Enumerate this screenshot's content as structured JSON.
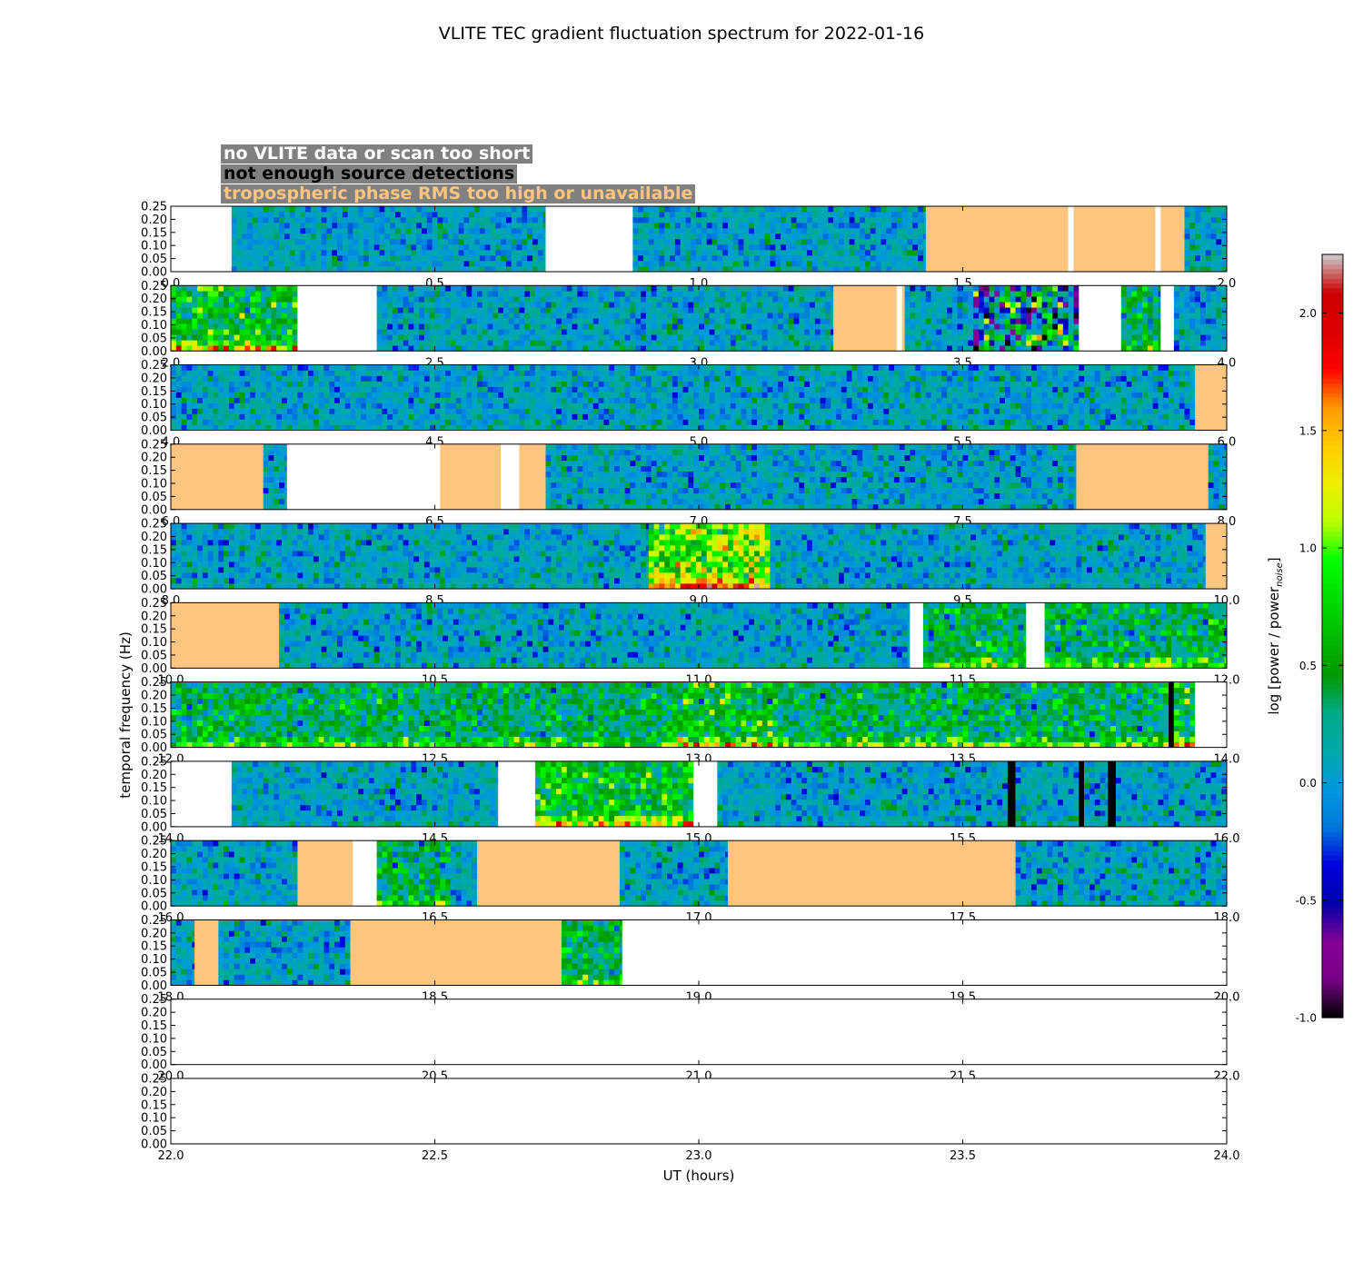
{
  "chart_data": {
    "type": "heatmap",
    "title": "VLITE TEC gradient fluctuation spectrum for 2022-01-16",
    "xlabel": "UT (hours)",
    "ylabel": "temporal frequency (Hz)",
    "colorbar_label_main": "log [power / power",
    "colorbar_label_sub": "noise",
    "colorbar_label_end": "]",
    "colorbar_range": [
      -1.0,
      2.25
    ],
    "colorbar_ticks": [
      "-1.0",
      "-0.5",
      "0.0",
      "0.5",
      "1.0",
      "1.5",
      "2.0"
    ],
    "colorbar_tick_values": [
      -1.0,
      -0.5,
      0.0,
      0.5,
      1.0,
      1.5,
      2.0
    ],
    "ylim": [
      0,
      0.25
    ],
    "ytick_labels": [
      "0.00",
      "0.05",
      "0.10",
      "0.15",
      "0.20",
      "0.25"
    ],
    "flag_legend": [
      {
        "label": "no VLITE data or scan too short",
        "color": "#ffffff"
      },
      {
        "label": "not enough source detections",
        "color": "#000000"
      },
      {
        "label": "tropospheric phase RMS too high or unavailable",
        "color": "#fec57f"
      }
    ],
    "flag_colors": {
      "nodata": "#ffffff",
      "nodet": "#000000",
      "tropo": "#fec57f"
    },
    "panels": [
      {
        "range": [
          0,
          2
        ],
        "xtick_labels": [
          "0.0",
          "0.5",
          "1.0",
          "1.5",
          "2.0"
        ],
        "segments": [
          [
            0,
            0.115,
            "nodata"
          ],
          [
            0.115,
            0.71,
            "data",
            0
          ],
          [
            0.71,
            0.875,
            "nodata"
          ],
          [
            0.875,
            1.43,
            "data",
            0
          ],
          [
            1.43,
            1.7,
            "tropo"
          ],
          [
            1.7,
            1.71,
            "nodata"
          ],
          [
            1.71,
            1.865,
            "tropo"
          ],
          [
            1.865,
            1.875,
            "nodata"
          ],
          [
            1.875,
            1.92,
            "tropo"
          ],
          [
            1.92,
            2.0,
            "data",
            0
          ]
        ]
      },
      {
        "range": [
          2,
          4
        ],
        "xtick_labels": [
          "2.0",
          "2.5",
          "3.0",
          "3.5",
          "4.0"
        ],
        "segments": [
          [
            2.0,
            2.24,
            "data",
            2
          ],
          [
            2.24,
            2.39,
            "nodata"
          ],
          [
            2.39,
            3.255,
            "data",
            0
          ],
          [
            3.255,
            3.375,
            "tropo"
          ],
          [
            3.375,
            3.385,
            "nodata"
          ],
          [
            3.385,
            3.39,
            "tropo"
          ],
          [
            3.39,
            3.52,
            "data",
            0
          ],
          [
            3.52,
            3.72,
            "data",
            3
          ],
          [
            3.72,
            3.8,
            "nodata"
          ],
          [
            3.8,
            3.875,
            "data",
            1
          ],
          [
            3.875,
            3.9,
            "nodata"
          ],
          [
            3.9,
            4.0,
            "data",
            0
          ]
        ]
      },
      {
        "range": [
          4,
          6
        ],
        "xtick_labels": [
          "4.0",
          "4.5",
          "5.0",
          "5.5",
          "6.0"
        ],
        "segments": [
          [
            4.0,
            5.94,
            "data",
            0
          ],
          [
            5.94,
            6.0,
            "tropo"
          ]
        ]
      },
      {
        "range": [
          6,
          8
        ],
        "xtick_labels": [
          "6.0",
          "6.5",
          "7.0",
          "7.5",
          "8.0"
        ],
        "segments": [
          [
            6.0,
            6.175,
            "tropo"
          ],
          [
            6.175,
            6.22,
            "data",
            0
          ],
          [
            6.22,
            6.51,
            "nodata"
          ],
          [
            6.51,
            6.625,
            "tropo"
          ],
          [
            6.625,
            6.66,
            "nodata"
          ],
          [
            6.66,
            6.71,
            "tropo"
          ],
          [
            6.71,
            7.715,
            "data",
            0
          ],
          [
            7.715,
            7.965,
            "tropo"
          ],
          [
            7.965,
            8.0,
            "data",
            0
          ]
        ]
      },
      {
        "range": [
          8,
          10
        ],
        "xtick_labels": [
          "8.0",
          "8.5",
          "9.0",
          "9.5",
          "10.0"
        ],
        "segments": [
          [
            8.0,
            8.905,
            "data",
            0
          ],
          [
            8.905,
            9.135,
            "data",
            4
          ],
          [
            9.135,
            9.96,
            "data",
            0
          ],
          [
            9.96,
            10.0,
            "tropo"
          ]
        ]
      },
      {
        "range": [
          10,
          12
        ],
        "xtick_labels": [
          "10.0",
          "10.5",
          "11.0",
          "11.5",
          "12.0"
        ],
        "segments": [
          [
            10.0,
            10.205,
            "tropo"
          ],
          [
            10.205,
            11.4,
            "data",
            0
          ],
          [
            11.4,
            11.425,
            "nodata"
          ],
          [
            11.425,
            11.62,
            "data",
            1
          ],
          [
            11.62,
            11.655,
            "nodata"
          ],
          [
            11.655,
            12.0,
            "data",
            1
          ]
        ]
      },
      {
        "range": [
          12,
          14
        ],
        "xtick_labels": [
          "12.0",
          "12.5",
          "13.0",
          "13.5",
          "14.0"
        ],
        "segments": [
          [
            12.0,
            12.95,
            "data",
            1
          ],
          [
            12.95,
            13.15,
            "data",
            2
          ],
          [
            13.15,
            13.89,
            "data",
            1
          ],
          [
            13.89,
            13.9,
            "nodet"
          ],
          [
            13.9,
            13.94,
            "data",
            2
          ],
          [
            13.94,
            14.0,
            "nodata"
          ]
        ]
      },
      {
        "range": [
          14,
          16
        ],
        "xtick_labels": [
          "14.0",
          "14.5",
          "15.0",
          "15.5",
          "16.0"
        ],
        "segments": [
          [
            14.0,
            14.115,
            "nodata"
          ],
          [
            14.115,
            14.62,
            "data",
            0
          ],
          [
            14.62,
            14.69,
            "nodata"
          ],
          [
            14.69,
            14.99,
            "data",
            2
          ],
          [
            14.99,
            15.035,
            "nodata"
          ],
          [
            15.035,
            15.585,
            "data",
            0
          ],
          [
            15.585,
            15.6,
            "nodet"
          ],
          [
            15.6,
            15.72,
            "data",
            0
          ],
          [
            15.72,
            15.73,
            "nodet"
          ],
          [
            15.73,
            15.775,
            "data",
            0
          ],
          [
            15.775,
            15.79,
            "nodet"
          ],
          [
            15.79,
            16.0,
            "data",
            0
          ]
        ]
      },
      {
        "range": [
          16,
          18
        ],
        "xtick_labels": [
          "16.0",
          "16.5",
          "17.0",
          "17.5",
          "18.0"
        ],
        "segments": [
          [
            16.0,
            16.24,
            "data",
            0
          ],
          [
            16.24,
            16.345,
            "tropo"
          ],
          [
            16.345,
            16.39,
            "nodata"
          ],
          [
            16.39,
            16.53,
            "data",
            1
          ],
          [
            16.53,
            16.58,
            "data",
            0
          ],
          [
            16.58,
            16.85,
            "tropo"
          ],
          [
            16.85,
            17.055,
            "data",
            0
          ],
          [
            17.055,
            17.6,
            "tropo"
          ],
          [
            17.6,
            18.0,
            "data",
            0
          ]
        ]
      },
      {
        "range": [
          18,
          20
        ],
        "xtick_labels": [
          "18.0",
          "18.5",
          "19.0",
          "19.5",
          "20.0"
        ],
        "segments": [
          [
            18.0,
            18.045,
            "data",
            0
          ],
          [
            18.045,
            18.09,
            "tropo"
          ],
          [
            18.09,
            18.34,
            "data",
            0
          ],
          [
            18.34,
            18.74,
            "tropo"
          ],
          [
            18.74,
            18.855,
            "data",
            1
          ],
          [
            18.855,
            20.0,
            "nodata"
          ]
        ]
      },
      {
        "range": [
          20,
          22
        ],
        "xtick_labels": [
          "20.0",
          "20.5",
          "21.0",
          "21.5",
          "22.0"
        ],
        "segments": []
      },
      {
        "range": [
          22,
          24
        ],
        "xtick_labels": [
          "22.0",
          "22.5",
          "23.0",
          "23.5",
          "24.0"
        ],
        "segments": []
      }
    ]
  }
}
